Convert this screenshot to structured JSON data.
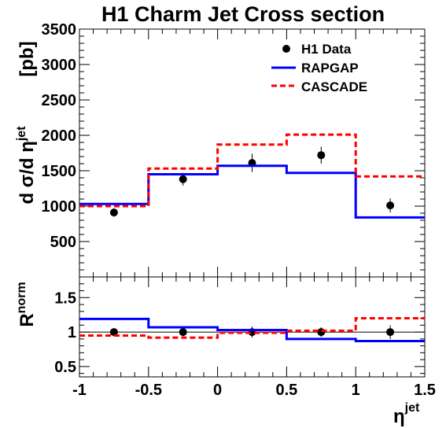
{
  "chart_data": [
    {
      "type": "histogram",
      "title": "H1 Charm Jet Cross section",
      "ylabel": "d σ/d η^jet [pb]",
      "ylabel_parts": {
        "main": "d σ/d η",
        "sup": "jet",
        "unit": "[pb]"
      },
      "xlim": [
        -1,
        1.5
      ],
      "ylim": [
        0,
        3500
      ],
      "yticks": [
        500,
        1000,
        1500,
        2000,
        2500,
        3000,
        3500
      ],
      "legend": {
        "placement": "top-right",
        "entries": [
          "H1 Data",
          "RAPGAP",
          "CASCADE"
        ]
      },
      "series": [
        {
          "name": "H1 Data",
          "kind": "points",
          "color": "#000000",
          "x": [
            -0.75,
            -0.25,
            0.25,
            0.75,
            1.25
          ],
          "y": [
            910,
            1380,
            1610,
            1720,
            1010
          ],
          "yerr": [
            60,
            90,
            130,
            120,
            100
          ]
        },
        {
          "name": "RAPGAP",
          "kind": "step",
          "color": "#0000ff",
          "dash": "solid",
          "bin_edges": [
            -1,
            -0.5,
            0,
            0.5,
            1,
            1.5
          ],
          "values": [
            1030,
            1450,
            1570,
            1470,
            840
          ]
        },
        {
          "name": "CASCADE",
          "kind": "step",
          "color": "#ff0000",
          "dash": "dashed",
          "bin_edges": [
            -1,
            -0.5,
            0,
            0.5,
            1,
            1.5
          ],
          "values": [
            1000,
            1530,
            1870,
            2010,
            1420
          ]
        }
      ]
    },
    {
      "type": "histogram",
      "ylabel": "R^norm",
      "ylabel_parts": {
        "main": "R",
        "sup": "norm"
      },
      "xlabel": "η^jet",
      "xlabel_parts": {
        "main": "η",
        "sup": "jet"
      },
      "xlim": [
        -1,
        1.5
      ],
      "ylim": [
        0.35,
        1.8
      ],
      "xticks": [
        "-1",
        "-0.5",
        "0",
        "0.5",
        "1",
        "1.5"
      ],
      "xtick_values": [
        -1,
        -0.5,
        0,
        0.5,
        1,
        1.5
      ],
      "yticks": [
        "0.5",
        "1",
        "1.5"
      ],
      "ytick_values": [
        0.5,
        1,
        1.5
      ],
      "reference_line": 1,
      "series": [
        {
          "name": "H1 Data",
          "kind": "points",
          "color": "#000000",
          "x": [
            -0.75,
            -0.25,
            0.25,
            0.75,
            1.25
          ],
          "y": [
            1.0,
            1.0,
            1.0,
            1.0,
            1.0
          ],
          "yerr": [
            0.06,
            0.06,
            0.08,
            0.07,
            0.1
          ]
        },
        {
          "name": "RAPGAP",
          "kind": "step",
          "color": "#0000ff",
          "dash": "solid",
          "bin_edges": [
            -1,
            -0.5,
            0,
            0.5,
            1,
            1.5
          ],
          "values": [
            1.19,
            1.07,
            1.03,
            0.9,
            0.87
          ]
        },
        {
          "name": "CASCADE",
          "kind": "step",
          "color": "#ff0000",
          "dash": "dashed",
          "bin_edges": [
            -1,
            -0.5,
            0,
            0.5,
            1,
            1.5
          ],
          "values": [
            0.95,
            0.92,
            0.99,
            1.02,
            1.2
          ]
        }
      ]
    }
  ]
}
